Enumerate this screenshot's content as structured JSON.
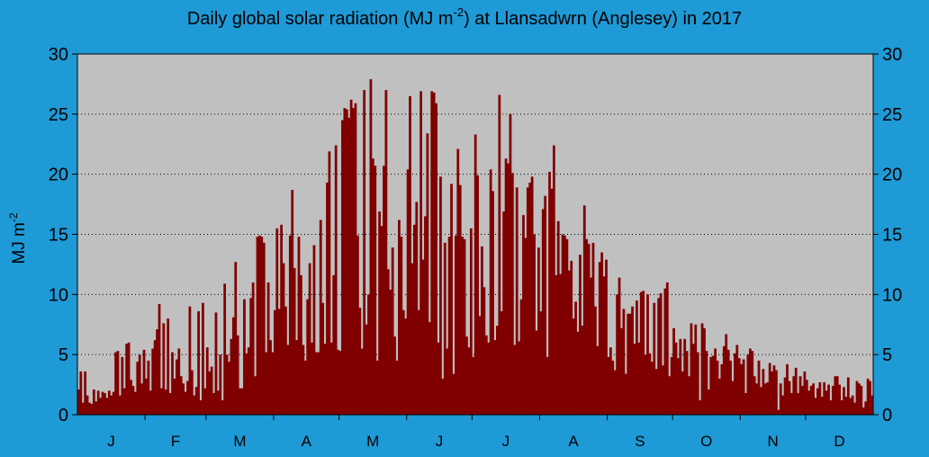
{
  "chart_data": {
    "type": "bar",
    "title": {
      "before": "Daily global solar radiation (MJ m",
      "superscript": "-2",
      "after": ") at Llansadwrn (Anglesey) in 2017"
    },
    "ylabel": {
      "base": "MJ m",
      "superscript": "-2"
    },
    "ylim": [
      0,
      30
    ],
    "yticks": [
      0,
      5,
      10,
      15,
      20,
      25,
      30
    ],
    "grid": "horizontal dotted",
    "x_unit": "day of year",
    "months": [
      {
        "label": "J",
        "days": 31
      },
      {
        "label": "F",
        "days": 28
      },
      {
        "label": "M",
        "days": 31
      },
      {
        "label": "A",
        "days": 30
      },
      {
        "label": "M",
        "days": 31
      },
      {
        "label": "J",
        "days": 30
      },
      {
        "label": "J",
        "days": 31
      },
      {
        "label": "A",
        "days": 31
      },
      {
        "label": "S",
        "days": 30
      },
      {
        "label": "O",
        "days": 31
      },
      {
        "label": "N",
        "days": 30
      },
      {
        "label": "D",
        "days": 31
      }
    ],
    "values": [
      2.1,
      3.6,
      1.0,
      3.6,
      1.6,
      1.0,
      0.9,
      2.1,
      1.1,
      2.0,
      1.4,
      1.9,
      1.8,
      1.4,
      2.0,
      1.6,
      1.9,
      5.2,
      5.3,
      1.6,
      4.8,
      2.2,
      5.9,
      6.0,
      2.9,
      2.4,
      1.9,
      4.4,
      5.0,
      2.6,
      5.4,
      3.0,
      4.5,
      2.0,
      5.5,
      6.2,
      7.1,
      9.2,
      2.2,
      7.6,
      2.1,
      8.0,
      1.8,
      5.2,
      3.0,
      4.6,
      5.5,
      3.2,
      2.6,
      1.9,
      2.8,
      9.0,
      3.7,
      1.6,
      2.3,
      8.6,
      1.2,
      9.3,
      2.2,
      5.6,
      3.6,
      4.0,
      1.8,
      8.5,
      2.0,
      5.0,
      1.2,
      10.9,
      5.0,
      4.4,
      6.3,
      8.1,
      12.7,
      6.6,
      2.2,
      2.2,
      9.6,
      5.1,
      5.6,
      9.7,
      11.0,
      3.2,
      14.8,
      14.9,
      14.8,
      14.3,
      5.2,
      11.0,
      6.2,
      5.2,
      8.7,
      15.5,
      8.8,
      15.8,
      12.6,
      9.0,
      5.8,
      14.9,
      18.7,
      12.2,
      6.2,
      14.8,
      11.6,
      5.8,
      4.5,
      9.6,
      12.6,
      6.0,
      14.1,
      5.2,
      5.2,
      16.2,
      9.3,
      5.9,
      19.3,
      21.9,
      6.0,
      11.6,
      22.4,
      5.4,
      5.3,
      24.5,
      25.5,
      25.4,
      24.7,
      26.2,
      25.5,
      25.9,
      14.9,
      8.9,
      5.5,
      27.0,
      7.5,
      10.0,
      27.9,
      21.3,
      20.7,
      4.5,
      16.9,
      15.7,
      20.7,
      27.0,
      12.1,
      10.4,
      13.9,
      6.5,
      4.5,
      16.2,
      14.8,
      8.7,
      8.0,
      20.4,
      26.5,
      12.6,
      15.8,
      17.7,
      8.7,
      26.9,
      12.9,
      16.5,
      23.4,
      7.7,
      26.9,
      26.8,
      25.9,
      6.0,
      19.8,
      3.0,
      14.3,
      5.5,
      14.8,
      19.2,
      3.4,
      14.9,
      22.1,
      19.1,
      14.8,
      14.6,
      6.5,
      5.6,
      15.5,
      4.8,
      23.3,
      19.9,
      8.2,
      14.0,
      10.6,
      6.6,
      6.0,
      20.4,
      18.6,
      6.2,
      7.4,
      26.6,
      8.6,
      16.9,
      21.3,
      20.9,
      25.0,
      20.1,
      5.8,
      18.9,
      6.1,
      9.6,
      16.6,
      14.7,
      18.9,
      19.3,
      19.8,
      15.0,
      7.0,
      13.9,
      8.6,
      17.1,
      18.2,
      4.8,
      20.2,
      18.8,
      22.4,
      11.6,
      16.1,
      11.7,
      15.0,
      14.9,
      14.6,
      12.0,
      12.8,
      8.0,
      9.4,
      6.9,
      13.3,
      7.4,
      17.4,
      14.6,
      14.2,
      11.4,
      14.3,
      9.0,
      5.7,
      12.7,
      13.5,
      11.5,
      12.9,
      4.8,
      5.6,
      4.5,
      3.7,
      10.0,
      11.4,
      7.2,
      8.8,
      3.4,
      8.4,
      8.4,
      9.0,
      5.9,
      9.5,
      6.0,
      10.2,
      10.3,
      5.0,
      10.0,
      5.1,
      4.4,
      9.3,
      3.8,
      9.7,
      10.1,
      4.1,
      10.5,
      11.0,
      3.2,
      4.8,
      7.2,
      6.0,
      4.7,
      6.3,
      3.6,
      6.3,
      5.3,
      3.2,
      7.6,
      5.9,
      7.5,
      5.2,
      1.2,
      7.6,
      7.2,
      5.3,
      2.1,
      4.8,
      4.9,
      5.5,
      4.5,
      3.0,
      4.2,
      5.7,
      6.7,
      5.4,
      4.5,
      2.8,
      5.1,
      5.8,
      4.7,
      4.2,
      4.6,
      1.8,
      5.0,
      5.5,
      5.3,
      3.2,
      2.6,
      4.5,
      2.3,
      3.8,
      2.6,
      2.7,
      4.3,
      3.6,
      4.1,
      3.7,
      0.4,
      2.6,
      1.6,
      3.1,
      4.2,
      2.8,
      1.8,
      3.2,
      3.9,
      1.8,
      3.2,
      2.4,
      3.6,
      2.9,
      2.0,
      2.4,
      2.6,
      1.4,
      2.2,
      2.7,
      1.5,
      2.7,
      2.0,
      2.5,
      1.2,
      2.4,
      3.2,
      3.2,
      2.5,
      1.2,
      2.3,
      1.5,
      3.1,
      1.4,
      1.6,
      1.0,
      2.8,
      2.6,
      2.4,
      0.6,
      1.1,
      3.0,
      2.8,
      1.6
    ]
  },
  "colors": {
    "background": "#1e9ad6",
    "plot_background": "#c0c0c0",
    "bar": "#800000",
    "text": "#000000"
  }
}
